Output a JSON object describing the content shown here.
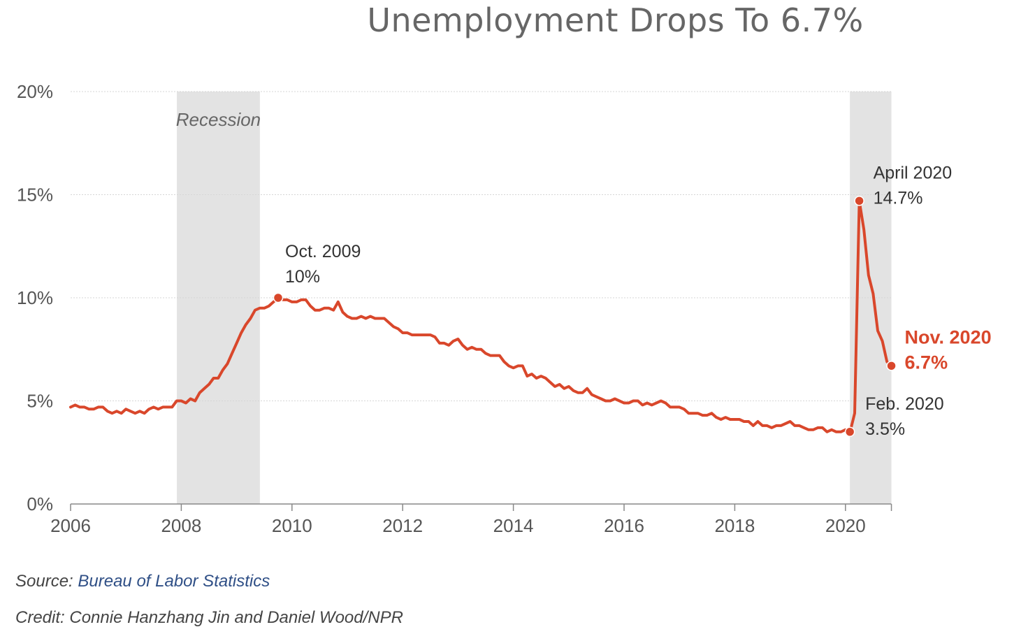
{
  "title": "Unemployment Drops To 6.7%",
  "source_label": "Source:",
  "source_name": "Bureau of Labor Statistics",
  "credit": "Credit: Connie Hanzhang Jin and Daniel Wood/NPR",
  "colors": {
    "line": "#d9472b",
    "recession": "#e3e3e3",
    "grid": "#d6d6d6",
    "axis_text": "#555555",
    "annotation_text": "#333333",
    "title": "#666666",
    "link": "#2f4f86"
  },
  "chart_data": {
    "type": "line",
    "title": "Unemployment Drops To 6.7%",
    "xlabel": "",
    "ylabel": "",
    "ylim": [
      0,
      20
    ],
    "xlim": [
      2006,
      2020.83
    ],
    "y_ticks": [
      0,
      5,
      10,
      15,
      20
    ],
    "y_tick_labels": [
      "0%",
      "5%",
      "10%",
      "15%",
      "20%"
    ],
    "x_ticks": [
      2006,
      2008,
      2010,
      2012,
      2014,
      2016,
      2018,
      2020
    ],
    "x_tick_labels": [
      "2006",
      "2008",
      "2010",
      "2012",
      "2014",
      "2016",
      "2018",
      "2020"
    ],
    "grid": true,
    "recessions": [
      {
        "label": "Recession",
        "start": 2007.92,
        "end": 2009.42
      },
      {
        "label": "",
        "start": 2020.08,
        "end": 2020.83
      }
    ],
    "series": [
      {
        "start": "2006-01",
        "frequency": "monthly",
        "values": [
          4.7,
          4.8,
          4.7,
          4.7,
          4.6,
          4.6,
          4.7,
          4.7,
          4.5,
          4.4,
          4.5,
          4.4,
          4.6,
          4.5,
          4.4,
          4.5,
          4.4,
          4.6,
          4.7,
          4.6,
          4.7,
          4.7,
          4.7,
          5.0,
          5.0,
          4.9,
          5.1,
          5.0,
          5.4,
          5.6,
          5.8,
          6.1,
          6.1,
          6.5,
          6.8,
          7.3,
          7.8,
          8.3,
          8.7,
          9.0,
          9.4,
          9.5,
          9.5,
          9.6,
          9.8,
          10.0,
          9.9,
          9.9,
          9.8,
          9.8,
          9.9,
          9.9,
          9.6,
          9.4,
          9.4,
          9.5,
          9.5,
          9.4,
          9.8,
          9.3,
          9.1,
          9.0,
          9.0,
          9.1,
          9.0,
          9.1,
          9.0,
          9.0,
          9.0,
          8.8,
          8.6,
          8.5,
          8.3,
          8.3,
          8.2,
          8.2,
          8.2,
          8.2,
          8.2,
          8.1,
          7.8,
          7.8,
          7.7,
          7.9,
          8.0,
          7.7,
          7.5,
          7.6,
          7.5,
          7.5,
          7.3,
          7.2,
          7.2,
          7.2,
          6.9,
          6.7,
          6.6,
          6.7,
          6.7,
          6.2,
          6.3,
          6.1,
          6.2,
          6.1,
          5.9,
          5.7,
          5.8,
          5.6,
          5.7,
          5.5,
          5.4,
          5.4,
          5.6,
          5.3,
          5.2,
          5.1,
          5.0,
          5.0,
          5.1,
          5.0,
          4.9,
          4.9,
          5.0,
          5.0,
          4.8,
          4.9,
          4.8,
          4.9,
          5.0,
          4.9,
          4.7,
          4.7,
          4.7,
          4.6,
          4.4,
          4.4,
          4.4,
          4.3,
          4.3,
          4.4,
          4.2,
          4.1,
          4.2,
          4.1,
          4.1,
          4.1,
          4.0,
          4.0,
          3.8,
          4.0,
          3.8,
          3.8,
          3.7,
          3.8,
          3.8,
          3.9,
          4.0,
          3.8,
          3.8,
          3.7,
          3.6,
          3.6,
          3.7,
          3.7,
          3.5,
          3.6,
          3.5,
          3.5,
          3.6,
          3.5,
          4.4,
          14.7,
          13.3,
          11.1,
          10.2,
          8.4,
          7.9,
          6.9,
          6.7
        ]
      }
    ],
    "annotations": [
      {
        "label": "Oct. 2009",
        "value_label": "10%",
        "x": 2009.75,
        "y": 10.0
      },
      {
        "label": "April 2020",
        "value_label": "14.7%",
        "x": 2020.25,
        "y": 14.7
      },
      {
        "label": "Feb. 2020",
        "value_label": "3.5%",
        "x": 2020.08,
        "y": 3.5
      },
      {
        "label": "Nov. 2020",
        "value_label": "6.7%",
        "x": 2020.83,
        "y": 6.7,
        "highlight": true
      }
    ]
  }
}
